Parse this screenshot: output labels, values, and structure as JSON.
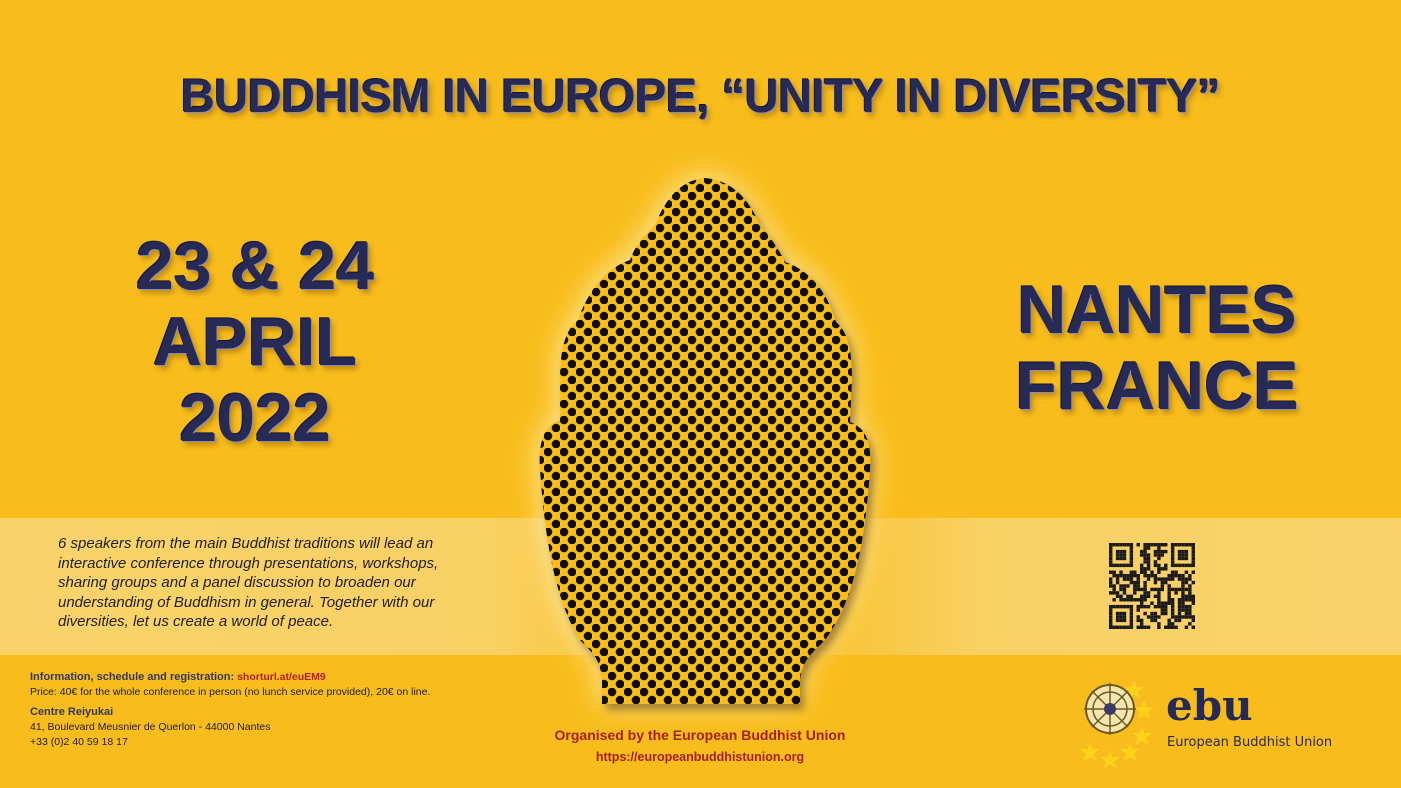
{
  "title": "BUDDHISM IN EUROPE, “UNITY IN DIVERSITY”",
  "date": {
    "line1": "23 & 24",
    "line2": "APRIL",
    "line3": "2022"
  },
  "place": {
    "city": "NANTES",
    "country": "FRANCE"
  },
  "description": "6 speakers from the main Buddhist traditions will lead an interactive conference through presentations, workshops, sharing groups and a panel discussion to broaden our understanding of Buddhism in general. Together with our diversities, let us create a world of peace.",
  "info": {
    "registration_label": "Information, schedule and registration:",
    "registration_link": "shorturl.at/euEM9",
    "price": "Price: 40€ for the whole conference in person (no lunch service provided), 20€ on line.",
    "venue": "Centre Reiyukai",
    "address": "41, Boulevard Meusnier de Querlon - 44000 Nantes",
    "phone": "+33 (0)2 40 59 18 17"
  },
  "organiser": {
    "text": "Organised by the European Buddhist Union",
    "url": "https://europeanbuddhistunion.org"
  },
  "logo": {
    "word": "ebu",
    "name": "European Buddhist Union"
  },
  "colors": {
    "background": "#F8BD1C",
    "navy": "#262a55",
    "accent_red": "#a8201a"
  }
}
